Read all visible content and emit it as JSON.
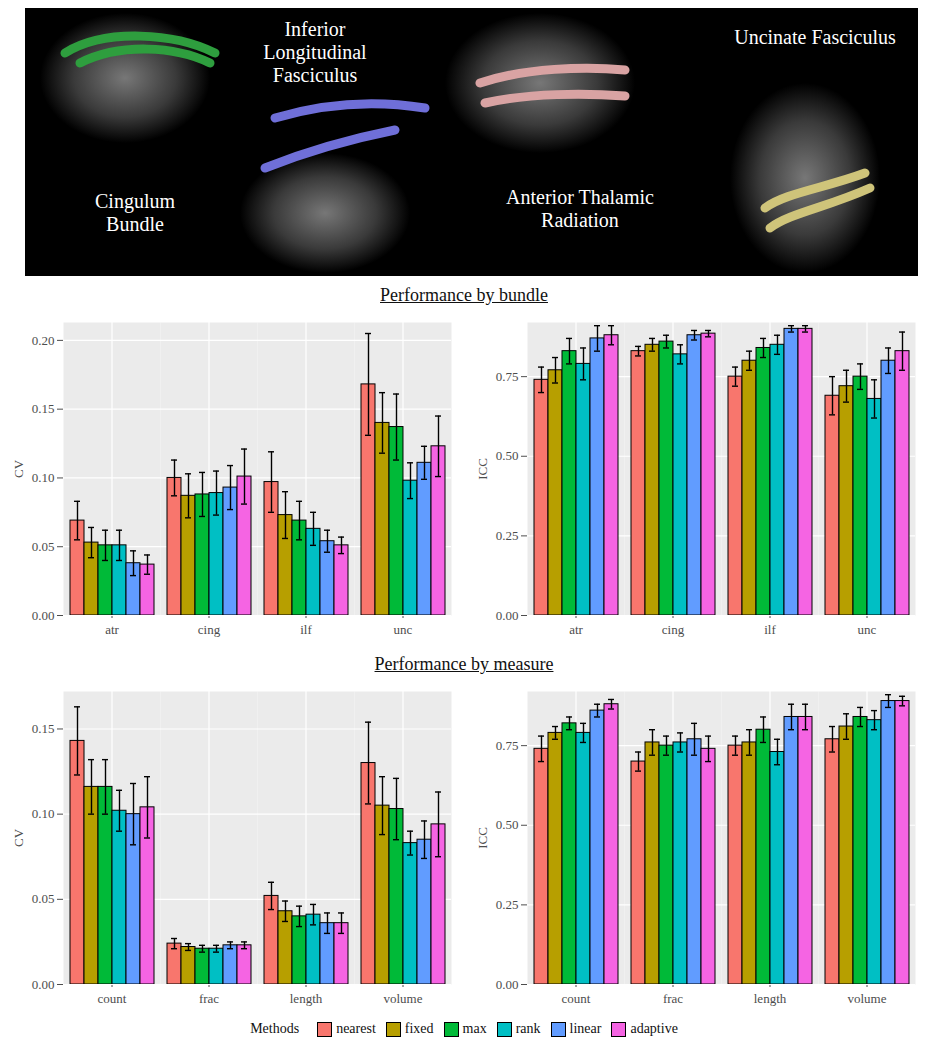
{
  "illustration": {
    "labels": [
      "Cingulum\nBundle",
      "Inferior\nLongitudinal\nFasciculus",
      "Anterior Thalamic\nRadiation",
      "Uncinate Fasciculus"
    ]
  },
  "sections": [
    "Performance by bundle",
    "Performance by measure"
  ],
  "legend_title": "Methods",
  "chart_data": [
    {
      "type": "bar",
      "y_label": "CV",
      "categories": [
        "atr",
        "cing",
        "ilf",
        "unc"
      ],
      "ylim": [
        0,
        0.213
      ],
      "yticks": [
        {
          "value": 0,
          "label": "0.00"
        },
        {
          "value": 0.05,
          "label": "0.05"
        },
        {
          "value": 0.1,
          "label": "0.10"
        },
        {
          "value": 0.15,
          "label": "0.15"
        },
        {
          "value": 0.2,
          "label": "0.20"
        }
      ],
      "grid": true,
      "legend": "bottom",
      "series": [
        {
          "name": "nearest",
          "color": "#F8766D",
          "values": [
            0.069,
            0.1,
            0.097,
            0.168
          ],
          "errors": [
            0.014,
            0.013,
            0.022,
            0.037
          ]
        },
        {
          "name": "fixed",
          "color": "#B79F00",
          "values": [
            0.053,
            0.087,
            0.073,
            0.14
          ],
          "errors": [
            0.011,
            0.016,
            0.017,
            0.022
          ]
        },
        {
          "name": "max",
          "color": "#00BA38",
          "values": [
            0.051,
            0.088,
            0.069,
            0.137
          ],
          "errors": [
            0.011,
            0.016,
            0.014,
            0.024
          ]
        },
        {
          "name": "rank",
          "color": "#00BFC4",
          "values": [
            0.051,
            0.089,
            0.063,
            0.098
          ],
          "errors": [
            0.011,
            0.016,
            0.012,
            0.013
          ]
        },
        {
          "name": "linear",
          "color": "#619CFF",
          "values": [
            0.038,
            0.093,
            0.054,
            0.111
          ],
          "errors": [
            0.009,
            0.016,
            0.008,
            0.012
          ]
        },
        {
          "name": "adaptive",
          "color": "#F564E3",
          "values": [
            0.037,
            0.101,
            0.051,
            0.123
          ],
          "errors": [
            0.007,
            0.02,
            0.006,
            0.022
          ]
        }
      ]
    },
    {
      "type": "bar",
      "y_label": "ICC",
      "categories": [
        "atr",
        "cing",
        "ilf",
        "unc"
      ],
      "ylim": [
        0,
        0.92
      ],
      "yticks": [
        {
          "value": 0,
          "label": "0.00"
        },
        {
          "value": 0.25,
          "label": "0.25"
        },
        {
          "value": 0.5,
          "label": "0.50"
        },
        {
          "value": 0.75,
          "label": "0.75"
        }
      ],
      "grid": true,
      "legend": "bottom",
      "series": [
        {
          "name": "nearest",
          "color": "#F8766D",
          "values": [
            0.74,
            0.83,
            0.75,
            0.69
          ],
          "errors": [
            0.04,
            0.015,
            0.03,
            0.06
          ]
        },
        {
          "name": "fixed",
          "color": "#B79F00",
          "values": [
            0.77,
            0.85,
            0.8,
            0.72
          ],
          "errors": [
            0.04,
            0.02,
            0.03,
            0.05
          ]
        },
        {
          "name": "max",
          "color": "#00BA38",
          "values": [
            0.83,
            0.86,
            0.84,
            0.75
          ],
          "errors": [
            0.04,
            0.02,
            0.03,
            0.04
          ]
        },
        {
          "name": "rank",
          "color": "#00BFC4",
          "values": [
            0.79,
            0.82,
            0.85,
            0.68
          ],
          "errors": [
            0.05,
            0.03,
            0.03,
            0.06
          ]
        },
        {
          "name": "linear",
          "color": "#619CFF",
          "values": [
            0.87,
            0.88,
            0.9,
            0.8
          ],
          "errors": [
            0.04,
            0.015,
            0.01,
            0.04
          ]
        },
        {
          "name": "adaptive",
          "color": "#F564E3",
          "values": [
            0.88,
            0.885,
            0.9,
            0.83
          ],
          "errors": [
            0.03,
            0.01,
            0.01,
            0.06
          ]
        }
      ]
    },
    {
      "type": "bar",
      "y_label": "CV",
      "categories": [
        "count",
        "frac",
        "length",
        "volume"
      ],
      "ylim": [
        0,
        0.172
      ],
      "yticks": [
        {
          "value": 0,
          "label": "0.00"
        },
        {
          "value": 0.05,
          "label": "0.05"
        },
        {
          "value": 0.1,
          "label": "0.10"
        },
        {
          "value": 0.15,
          "label": "0.15"
        }
      ],
      "grid": true,
      "legend": "bottom",
      "series": [
        {
          "name": "nearest",
          "color": "#F8766D",
          "values": [
            0.143,
            0.024,
            0.052,
            0.13
          ],
          "errors": [
            0.02,
            0.003,
            0.008,
            0.024
          ]
        },
        {
          "name": "fixed",
          "color": "#B79F00",
          "values": [
            0.116,
            0.022,
            0.043,
            0.105
          ],
          "errors": [
            0.016,
            0.002,
            0.006,
            0.017
          ]
        },
        {
          "name": "max",
          "color": "#00BA38",
          "values": [
            0.116,
            0.021,
            0.04,
            0.103
          ],
          "errors": [
            0.016,
            0.002,
            0.006,
            0.018
          ]
        },
        {
          "name": "rank",
          "color": "#00BFC4",
          "values": [
            0.102,
            0.021,
            0.041,
            0.083
          ],
          "errors": [
            0.012,
            0.002,
            0.006,
            0.007
          ]
        },
        {
          "name": "linear",
          "color": "#619CFF",
          "values": [
            0.1,
            0.023,
            0.036,
            0.085
          ],
          "errors": [
            0.018,
            0.002,
            0.006,
            0.011
          ]
        },
        {
          "name": "adaptive",
          "color": "#F564E3",
          "values": [
            0.104,
            0.023,
            0.036,
            0.094
          ],
          "errors": [
            0.018,
            0.002,
            0.006,
            0.019
          ]
        }
      ]
    },
    {
      "type": "bar",
      "y_label": "ICC",
      "categories": [
        "count",
        "frac",
        "length",
        "volume"
      ],
      "ylim": [
        0,
        0.92
      ],
      "yticks": [
        {
          "value": 0,
          "label": "0.00"
        },
        {
          "value": 0.25,
          "label": "0.25"
        },
        {
          "value": 0.5,
          "label": "0.50"
        },
        {
          "value": 0.75,
          "label": "0.75"
        }
      ],
      "grid": true,
      "legend": "bottom",
      "series": [
        {
          "name": "nearest",
          "color": "#F8766D",
          "values": [
            0.74,
            0.7,
            0.75,
            0.77
          ],
          "errors": [
            0.04,
            0.03,
            0.03,
            0.04
          ]
        },
        {
          "name": "fixed",
          "color": "#B79F00",
          "values": [
            0.79,
            0.76,
            0.76,
            0.81
          ],
          "errors": [
            0.02,
            0.04,
            0.04,
            0.04
          ]
        },
        {
          "name": "max",
          "color": "#00BA38",
          "values": [
            0.82,
            0.75,
            0.8,
            0.84
          ],
          "errors": [
            0.02,
            0.03,
            0.04,
            0.03
          ]
        },
        {
          "name": "rank",
          "color": "#00BFC4",
          "values": [
            0.79,
            0.76,
            0.73,
            0.83
          ],
          "errors": [
            0.03,
            0.03,
            0.04,
            0.03
          ]
        },
        {
          "name": "linear",
          "color": "#619CFF",
          "values": [
            0.86,
            0.77,
            0.84,
            0.89
          ],
          "errors": [
            0.02,
            0.05,
            0.04,
            0.02
          ]
        },
        {
          "name": "adaptive",
          "color": "#F564E3",
          "values": [
            0.88,
            0.74,
            0.84,
            0.89
          ],
          "errors": [
            0.015,
            0.04,
            0.04,
            0.015
          ]
        }
      ]
    }
  ]
}
